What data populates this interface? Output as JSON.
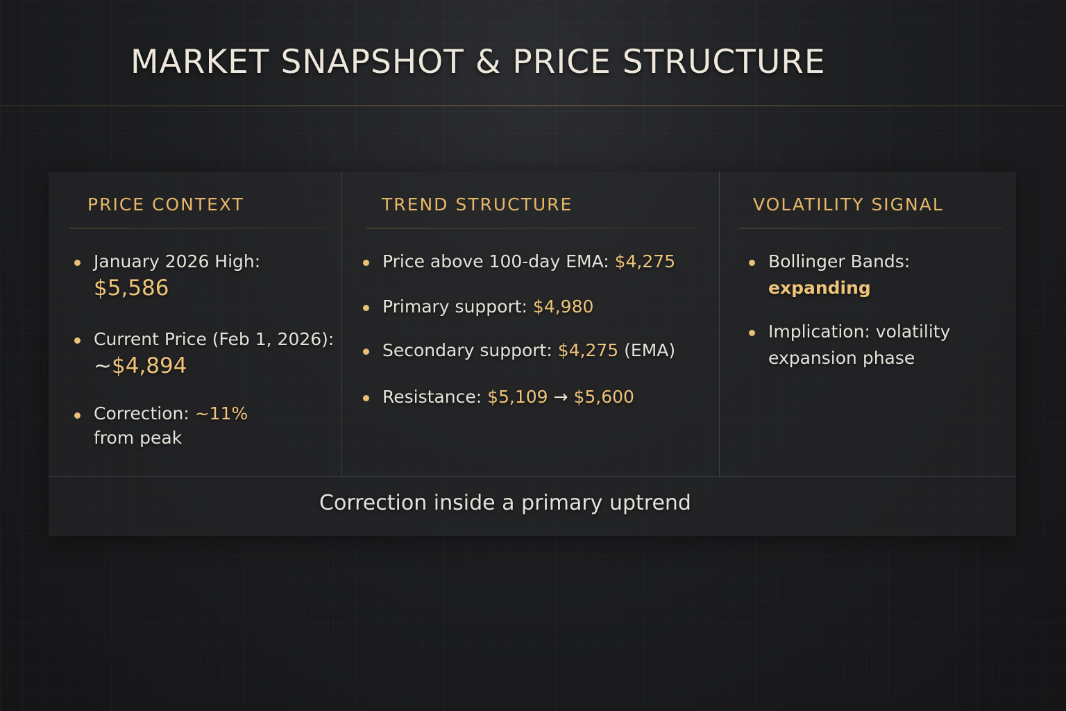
{
  "title": "MARKET SNAPSHOT & PRICE STRUCTURE",
  "accent_color": "#e9c078",
  "columns": [
    {
      "heading": "PRICE CONTEXT",
      "items": [
        {
          "label": "January 2026 High:",
          "value": "$5,586"
        },
        {
          "label": "Current Price (Feb 1, 2026):",
          "prefix": "~",
          "value": "$4,894"
        },
        {
          "label": "Correction:",
          "value": "~11%",
          "suffix": "from peak"
        }
      ]
    },
    {
      "heading": "TREND STRUCTURE",
      "items": [
        {
          "label": "Price above 100-day EMA:",
          "value": "$4,275"
        },
        {
          "label": "Primary support:",
          "value": "$4,980"
        },
        {
          "label": "Secondary support:",
          "value": "$4,275",
          "suffix": "(EMA)"
        },
        {
          "label": "Resistance:",
          "value": "$5,109",
          "arrow": "→",
          "value2": "$5,600"
        }
      ]
    },
    {
      "heading": "VOLATILITY SIGNAL",
      "items": [
        {
          "label": "Bollinger Bands:",
          "value": "expanding"
        },
        {
          "label": "Implication: volatility expansion phase"
        }
      ]
    }
  ],
  "footer": "Correction inside a primary uptrend"
}
